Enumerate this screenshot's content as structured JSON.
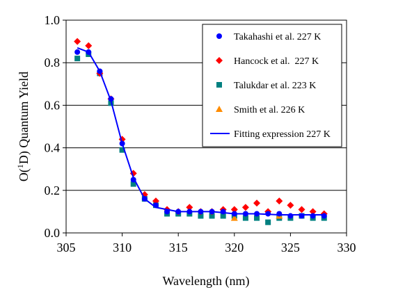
{
  "chart_data": {
    "type": "scatter",
    "xlabel": "Wavelength (nm)",
    "ylabel": {
      "prefix": "O(",
      "sup": "1",
      "mid": "D) Quantum Yield"
    },
    "xlim": [
      305,
      330
    ],
    "ylim": [
      0.0,
      1.0
    ],
    "xticks": [
      "305",
      "310",
      "315",
      "320",
      "325",
      "330"
    ],
    "yticks": [
      "0.0",
      "0.2",
      "0.4",
      "0.6",
      "0.8",
      "1.0"
    ],
    "grid": "horizontal",
    "legend_position": "top-right",
    "series": [
      {
        "name": "Takahashi et al. 227 K",
        "marker": "circle",
        "color": "#0000ff",
        "points": [
          [
            306,
            0.85
          ],
          [
            307,
            0.85
          ],
          [
            308,
            0.76
          ],
          [
            309,
            0.63
          ],
          [
            310,
            0.42
          ],
          [
            311,
            0.25
          ],
          [
            312,
            0.16
          ],
          [
            313,
            0.13
          ],
          [
            314,
            0.1
          ],
          [
            315,
            0.1
          ],
          [
            316,
            0.1
          ],
          [
            317,
            0.1
          ],
          [
            318,
            0.1
          ],
          [
            319,
            0.1
          ],
          [
            320,
            0.09
          ],
          [
            321,
            0.09
          ],
          [
            322,
            0.09
          ],
          [
            323,
            0.09
          ],
          [
            324,
            0.09
          ],
          [
            325,
            0.08
          ],
          [
            326,
            0.08
          ],
          [
            327,
            0.08
          ],
          [
            328,
            0.08
          ]
        ]
      },
      {
        "name": "Hancock et al.  227 K",
        "marker": "diamond",
        "color": "#ff0000",
        "points": [
          [
            306,
            0.9
          ],
          [
            307,
            0.88
          ],
          [
            308,
            0.75
          ],
          [
            309,
            0.63
          ],
          [
            310,
            0.44
          ],
          [
            311,
            0.28
          ],
          [
            312,
            0.18
          ],
          [
            313,
            0.15
          ],
          [
            314,
            0.11
          ],
          [
            315,
            0.1
          ],
          [
            316,
            0.12
          ],
          [
            317,
            0.1
          ],
          [
            318,
            0.1
          ],
          [
            319,
            0.11
          ],
          [
            320,
            0.11
          ],
          [
            321,
            0.12
          ],
          [
            322,
            0.14
          ],
          [
            323,
            0.1
          ],
          [
            324,
            0.15
          ],
          [
            325,
            0.13
          ],
          [
            326,
            0.11
          ],
          [
            327,
            0.1
          ],
          [
            328,
            0.09
          ]
        ]
      },
      {
        "name": "Talukdar et al. 223 K",
        "marker": "square",
        "color": "#008080",
        "points": [
          [
            306,
            0.82
          ],
          [
            307,
            0.84
          ],
          [
            308,
            0.75
          ],
          [
            309,
            0.61
          ],
          [
            310,
            0.39
          ],
          [
            311,
            0.23
          ],
          [
            312,
            0.16
          ],
          [
            313,
            0.13
          ],
          [
            314,
            0.09
          ],
          [
            315,
            0.09
          ],
          [
            316,
            0.09
          ],
          [
            317,
            0.08
          ],
          [
            318,
            0.08
          ],
          [
            319,
            0.08
          ],
          [
            320,
            0.08
          ],
          [
            321,
            0.07
          ],
          [
            322,
            0.07
          ],
          [
            323,
            0.05
          ],
          [
            324,
            0.07
          ],
          [
            325,
            0.07
          ],
          [
            326,
            0.08
          ],
          [
            327,
            0.07
          ],
          [
            328,
            0.07
          ]
        ]
      },
      {
        "name": "Smith et al. 226 K",
        "marker": "triangle",
        "color": "#ff8c00",
        "points": [
          [
            320,
            0.07
          ],
          [
            324,
            0.08
          ]
        ]
      },
      {
        "name": "Fitting expression 227 K",
        "marker": "line",
        "color": "#0000ff",
        "points": [
          [
            306,
            0.87
          ],
          [
            307,
            0.85
          ],
          [
            308,
            0.76
          ],
          [
            309,
            0.62
          ],
          [
            310,
            0.42
          ],
          [
            311,
            0.26
          ],
          [
            312,
            0.16
          ],
          [
            313,
            0.12
          ],
          [
            314,
            0.11
          ],
          [
            315,
            0.1
          ],
          [
            316,
            0.1
          ],
          [
            317,
            0.1
          ],
          [
            318,
            0.1
          ],
          [
            319,
            0.095
          ],
          [
            320,
            0.09
          ],
          [
            322,
            0.09
          ],
          [
            324,
            0.085
          ],
          [
            326,
            0.085
          ],
          [
            328,
            0.085
          ]
        ]
      }
    ]
  }
}
